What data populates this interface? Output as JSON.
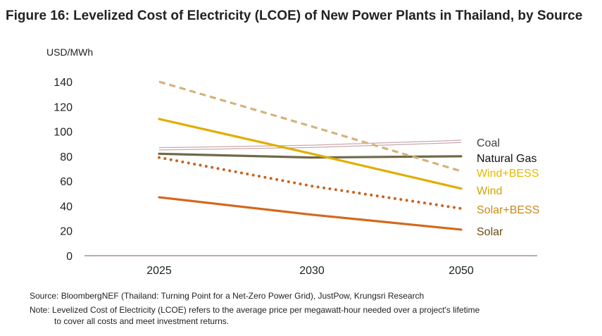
{
  "chart_data": {
    "type": "line",
    "title": "Figure 16: Levelized Cost of Electricity (LCOE) of New Power Plants in Thailand, by Source",
    "ylabel": "USD/MWh",
    "xlabel": "",
    "categories": [
      "2025",
      "2030",
      "2050"
    ],
    "ylim": [
      0,
      140
    ],
    "yticks": [
      0,
      20,
      40,
      60,
      80,
      100,
      120,
      140
    ],
    "grid": false,
    "legend": "right (inline labels at line ends)",
    "series": [
      {
        "name": "Coal",
        "values": [
          86,
          88,
          92
        ],
        "color": "#c9a9ae",
        "label_color": "#404040",
        "style": "double"
      },
      {
        "name": "Natural Gas",
        "values": [
          82,
          79,
          80
        ],
        "color": "#6f6a48",
        "label_color": "#111111",
        "style": "solid"
      },
      {
        "name": "Wind+BESS",
        "values": [
          140,
          104,
          68
        ],
        "color": "#d5b27c",
        "label_color": "#e6b800",
        "style": "dashed"
      },
      {
        "name": "Wind",
        "values": [
          110,
          82,
          54
        ],
        "color": "#e0ae00",
        "label_color": "#d4a300",
        "style": "solid"
      },
      {
        "name": "Solar+BESS",
        "values": [
          79,
          56,
          38
        ],
        "color": "#c8631f",
        "label_color": "#c98a1a",
        "style": "dotted"
      },
      {
        "name": "Solar",
        "values": [
          47,
          33,
          21
        ],
        "color": "#d2691e",
        "label_color": "#6b4a14",
        "style": "solid"
      }
    ]
  },
  "source": "Source: BloombergNEF (Thailand: Turning Point for a Net-Zero Power Grid), JustPow, Krungsri Research",
  "note_line1": "Note: Levelized Cost of Electricity (LCOE) refers to the average price per megawatt-hour needed over a project's lifetime",
  "note_line2": "to cover all costs and meet investment returns."
}
